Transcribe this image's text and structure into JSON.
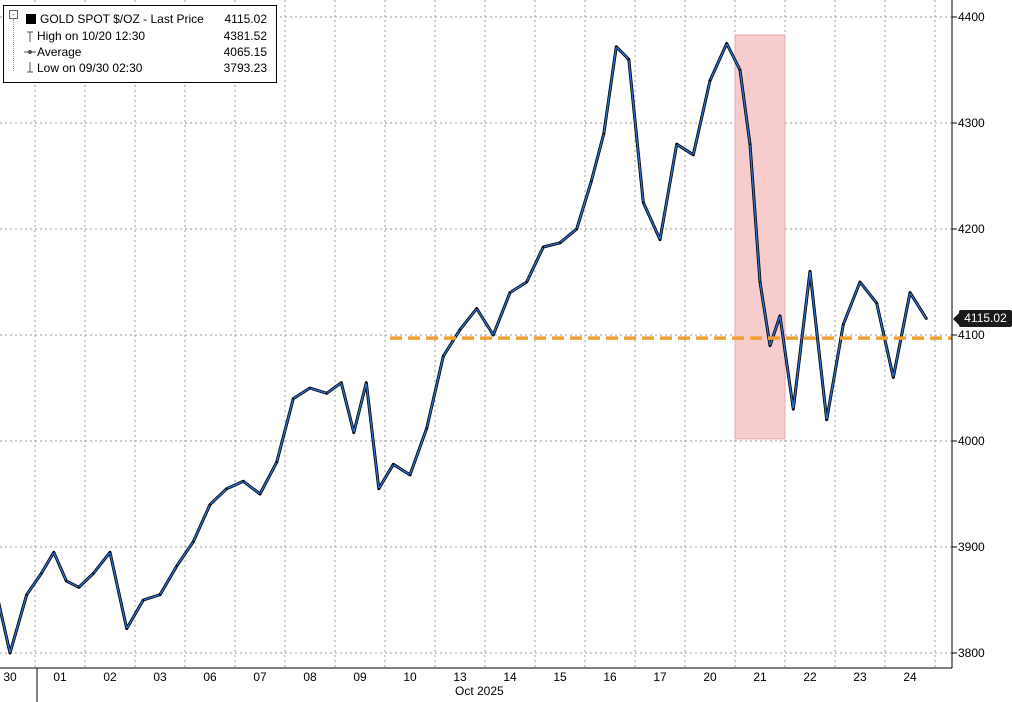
{
  "legend": {
    "title": "GOLD SPOT $/OZ - Last Price",
    "last_price": "4115.02",
    "high_label": "High on 10/20 12:30",
    "high_value": "4381.52",
    "average_label": "Average",
    "average_value": "4065.15",
    "low_label": "Low on 09/30 02:30",
    "low_value": "3793.23"
  },
  "price_tag": "4115.02",
  "month_label": "Oct 2025",
  "colors": {
    "price_line_outline": "#000000",
    "price_line": "#2f6fce",
    "reference_line": "#f0a030",
    "highlight_band": "#f6cccc",
    "grid": "#9a9a9a"
  },
  "chart_data": {
    "type": "line",
    "title": "GOLD SPOT $/OZ - Last Price",
    "xlabel": "Oct 2025",
    "ylabel": "",
    "x_ticks": [
      "30",
      "01",
      "02",
      "03",
      "06",
      "07",
      "08",
      "09",
      "10",
      "13",
      "14",
      "15",
      "16",
      "17",
      "20",
      "21",
      "22",
      "23",
      "24"
    ],
    "y_ticks": [
      3800,
      3900,
      4000,
      4100,
      4200,
      4300,
      4400
    ],
    "ylim": [
      3790,
      4415
    ],
    "grid": true,
    "legend_position": "top-left",
    "last_price": 4115.02,
    "high": 4381.52,
    "average": 4065.15,
    "low": 3793.23,
    "reference_line": {
      "y": 4097,
      "x_start": "10",
      "x_end": "24",
      "style": "dashed"
    },
    "highlight": {
      "x_start": "21",
      "x_end": "21",
      "y_range": [
        4002,
        4383
      ]
    },
    "series": [
      {
        "x": [
          "30",
          "30",
          "30",
          "01",
          "01",
          "01",
          "01",
          "02",
          "02",
          "02",
          "03",
          "03",
          "03",
          "06",
          "06",
          "06",
          "07",
          "07",
          "07",
          "08",
          "08",
          "08",
          "09",
          "09",
          "09",
          "09",
          "10",
          "10",
          "10",
          "13",
          "13",
          "13",
          "14",
          "14",
          "14",
          "15",
          "15",
          "15",
          "16",
          "16",
          "16",
          "16",
          "17",
          "17",
          "17",
          "20",
          "20",
          "20",
          "21",
          "21",
          "21",
          "21",
          "21",
          "22",
          "22",
          "22",
          "23",
          "23",
          "23",
          "24",
          "24",
          "24"
        ],
        "values": [
          3870,
          3800,
          3855,
          3875,
          3895,
          3868,
          3862,
          3875,
          3895,
          3823,
          3850,
          3855,
          3882,
          3905,
          3940,
          3955,
          3962,
          3950,
          3980,
          4040,
          4050,
          4045,
          4055,
          4008,
          4055,
          3955,
          3978,
          3968,
          4012,
          4080,
          4105,
          4125,
          4100,
          4140,
          4150,
          4183,
          4187,
          4200,
          4245,
          4290,
          4372,
          4360,
          4225,
          4190,
          4280,
          4270,
          4340,
          4375,
          4350,
          4280,
          4150,
          4090,
          4118,
          4030,
          4160,
          4020,
          4110,
          4150,
          4130,
          4060,
          4140,
          4115
        ]
      }
    ]
  }
}
